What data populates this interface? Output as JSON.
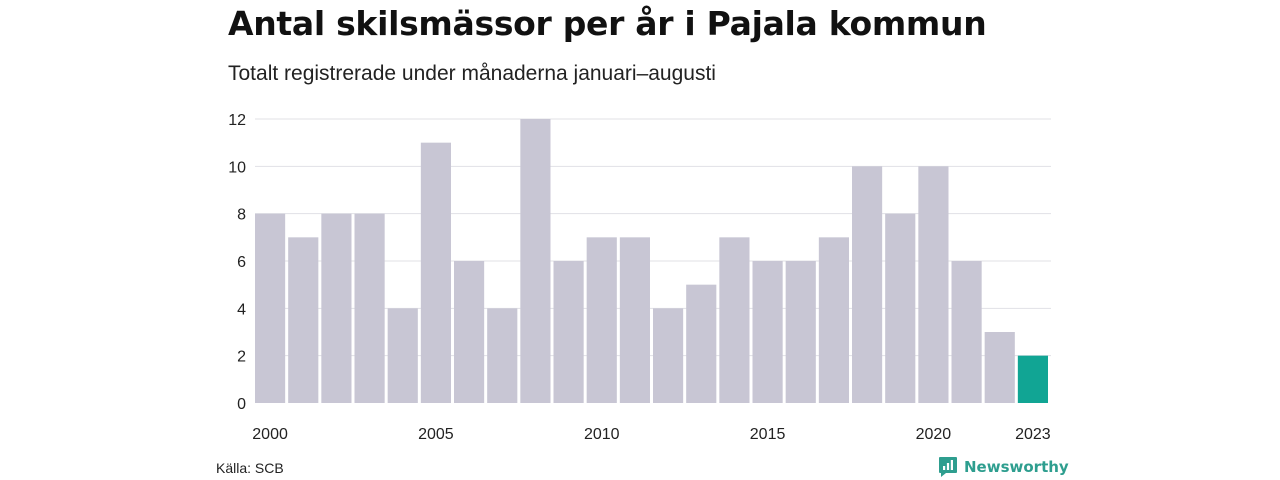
{
  "header": {
    "title": "Antal skilsmässor per år i Pajala kommun",
    "subtitle": "Totalt registrerade under månaderna januari–augusti"
  },
  "footer": {
    "source": "Källa: SCB",
    "brand": "Newsworthy"
  },
  "colors": {
    "bar": "#c8c6d4",
    "highlight": "#11a594",
    "grid": "#e1e1e6",
    "axis_text": "#222222",
    "brand": "#2e9e8f"
  },
  "chart_data": {
    "type": "bar",
    "title": "Antal skilsmässor per år i Pajala kommun",
    "subtitle": "Totalt registrerade under månaderna januari–augusti",
    "categories": [
      "2000",
      "2001",
      "2002",
      "2003",
      "2004",
      "2005",
      "2006",
      "2007",
      "2008",
      "2009",
      "2010",
      "2011",
      "2012",
      "2013",
      "2014",
      "2015",
      "2016",
      "2017",
      "2018",
      "2019",
      "2020",
      "2021",
      "2022",
      "2023"
    ],
    "values": [
      8,
      7,
      8,
      8,
      4,
      11,
      6,
      4,
      12,
      6,
      7,
      7,
      4,
      5,
      7,
      6,
      6,
      7,
      10,
      8,
      10,
      6,
      3,
      2
    ],
    "highlight_category": "2023",
    "x_tick_labels": [
      "2000",
      "2005",
      "2010",
      "2015",
      "2020",
      "2023"
    ],
    "y_ticks": [
      0,
      2,
      4,
      6,
      8,
      10,
      12
    ],
    "ylim": [
      0,
      12
    ],
    "xlabel": "",
    "ylabel": "",
    "grid": true,
    "legend": "none"
  }
}
